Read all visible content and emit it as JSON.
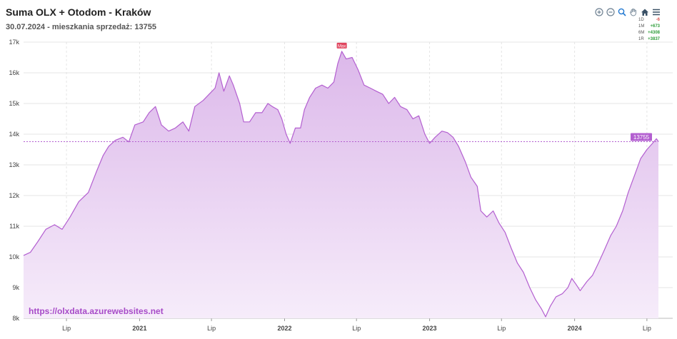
{
  "header": {
    "title": "Suma OLX + Otodom - Kraków",
    "subtitle": "30.07.2024 - mieszkania sprzedaż: 13755"
  },
  "toolbar": {
    "icons": [
      "zoom-in-icon",
      "zoom-out-icon",
      "magnify-icon",
      "pan-hand-icon",
      "home-icon",
      "menu-icon"
    ]
  },
  "changes": [
    {
      "label": "1D",
      "value": "-6",
      "trend": "neg"
    },
    {
      "label": "1M",
      "value": "+673",
      "trend": "pos"
    },
    {
      "label": "6M",
      "value": "+4308",
      "trend": "pos"
    },
    {
      "label": "1R",
      "value": "+3837",
      "trend": "pos"
    }
  ],
  "watermark": "https://olxdata.azurewebsites.net",
  "colors": {
    "line": "#b35fd0",
    "fill_top": "#dcb8ea",
    "fill_bottom": "#f6ecfa",
    "grid": "#e4e4e4",
    "annotation": "#b35fd0",
    "max_marker": "#e0455e"
  },
  "chart_data": {
    "type": "area",
    "title": "Suma OLX + Otodom - Kraków",
    "ylim": [
      8000,
      17000
    ],
    "yticks": [
      8000,
      9000,
      10000,
      11000,
      12000,
      13000,
      14000,
      15000,
      16000,
      17000
    ],
    "ytick_labels": [
      "8k",
      "9k",
      "10k",
      "11k",
      "12k",
      "13k",
      "14k",
      "15k",
      "16k",
      "17k"
    ],
    "xlim": [
      "2020-03-15",
      "2024-07-30"
    ],
    "xticks": [
      {
        "date": "2020-07-01",
        "label": "Lip",
        "bold": false
      },
      {
        "date": "2021-01-01",
        "label": "2021",
        "bold": true
      },
      {
        "date": "2021-07-01",
        "label": "Lip",
        "bold": false
      },
      {
        "date": "2022-01-01",
        "label": "2022",
        "bold": true
      },
      {
        "date": "2022-07-01",
        "label": "Lip",
        "bold": false
      },
      {
        "date": "2023-01-01",
        "label": "2023",
        "bold": true
      },
      {
        "date": "2023-07-01",
        "label": "Lip",
        "bold": false
      },
      {
        "date": "2024-01-01",
        "label": "2024",
        "bold": true
      },
      {
        "date": "2024-07-01",
        "label": "Lip",
        "bold": false
      }
    ],
    "points": [
      [
        "2020-03-15",
        10050
      ],
      [
        "2020-04-01",
        10150
      ],
      [
        "2020-04-20",
        10500
      ],
      [
        "2020-05-10",
        10900
      ],
      [
        "2020-06-01",
        11050
      ],
      [
        "2020-06-20",
        10900
      ],
      [
        "2020-07-10",
        11300
      ],
      [
        "2020-08-01",
        11800
      ],
      [
        "2020-08-25",
        12100
      ],
      [
        "2020-09-15",
        12800
      ],
      [
        "2020-10-01",
        13300
      ],
      [
        "2020-10-15",
        13600
      ],
      [
        "2020-11-01",
        13800
      ],
      [
        "2020-11-20",
        13900
      ],
      [
        "2020-12-05",
        13750
      ],
      [
        "2020-12-20",
        14300
      ],
      [
        "2021-01-10",
        14400
      ],
      [
        "2021-01-25",
        14700
      ],
      [
        "2021-02-10",
        14900
      ],
      [
        "2021-02-25",
        14300
      ],
      [
        "2021-03-15",
        14100
      ],
      [
        "2021-04-01",
        14200
      ],
      [
        "2021-04-20",
        14400
      ],
      [
        "2021-05-05",
        14100
      ],
      [
        "2021-05-20",
        14900
      ],
      [
        "2021-06-10",
        15100
      ],
      [
        "2021-06-25",
        15300
      ],
      [
        "2021-07-10",
        15500
      ],
      [
        "2021-07-20",
        16000
      ],
      [
        "2021-08-01",
        15400
      ],
      [
        "2021-08-15",
        15900
      ],
      [
        "2021-08-25",
        15600
      ],
      [
        "2021-09-10",
        15000
      ],
      [
        "2021-09-20",
        14400
      ],
      [
        "2021-10-05",
        14400
      ],
      [
        "2021-10-20",
        14700
      ],
      [
        "2021-11-05",
        14700
      ],
      [
        "2021-11-20",
        15000
      ],
      [
        "2021-12-01",
        14900
      ],
      [
        "2021-12-15",
        14800
      ],
      [
        "2021-12-25",
        14500
      ],
      [
        "2022-01-05",
        14000
      ],
      [
        "2022-01-15",
        13700
      ],
      [
        "2022-01-28",
        14200
      ],
      [
        "2022-02-10",
        14200
      ],
      [
        "2022-02-20",
        14800
      ],
      [
        "2022-03-05",
        15200
      ],
      [
        "2022-03-20",
        15500
      ],
      [
        "2022-04-05",
        15600
      ],
      [
        "2022-04-20",
        15500
      ],
      [
        "2022-05-05",
        15700
      ],
      [
        "2022-05-15",
        16300
      ],
      [
        "2022-05-25",
        16700
      ],
      [
        "2022-06-05",
        16450
      ],
      [
        "2022-06-20",
        16500
      ],
      [
        "2022-07-05",
        16100
      ],
      [
        "2022-07-20",
        15600
      ],
      [
        "2022-08-05",
        15500
      ],
      [
        "2022-08-20",
        15400
      ],
      [
        "2022-09-05",
        15300
      ],
      [
        "2022-09-20",
        15000
      ],
      [
        "2022-10-05",
        15200
      ],
      [
        "2022-10-20",
        14900
      ],
      [
        "2022-11-05",
        14800
      ],
      [
        "2022-11-20",
        14500
      ],
      [
        "2022-12-05",
        14600
      ],
      [
        "2022-12-20",
        14000
      ],
      [
        "2023-01-01",
        13700
      ],
      [
        "2023-01-15",
        13900
      ],
      [
        "2023-02-01",
        14100
      ],
      [
        "2023-02-15",
        14050
      ],
      [
        "2023-03-01",
        13900
      ],
      [
        "2023-03-15",
        13600
      ],
      [
        "2023-04-01",
        13100
      ],
      [
        "2023-04-15",
        12600
      ],
      [
        "2023-05-01",
        12300
      ],
      [
        "2023-05-10",
        11500
      ],
      [
        "2023-05-25",
        11300
      ],
      [
        "2023-06-10",
        11500
      ],
      [
        "2023-06-25",
        11100
      ],
      [
        "2023-07-10",
        10800
      ],
      [
        "2023-07-25",
        10300
      ],
      [
        "2023-08-10",
        9800
      ],
      [
        "2023-08-25",
        9500
      ],
      [
        "2023-09-10",
        9000
      ],
      [
        "2023-09-25",
        8600
      ],
      [
        "2023-10-10",
        8300
      ],
      [
        "2023-10-20",
        8050
      ],
      [
        "2023-11-01",
        8400
      ],
      [
        "2023-11-15",
        8700
      ],
      [
        "2023-12-01",
        8800
      ],
      [
        "2023-12-15",
        9000
      ],
      [
        "2023-12-25",
        9300
      ],
      [
        "2024-01-05",
        9100
      ],
      [
        "2024-01-15",
        8900
      ],
      [
        "2024-02-01",
        9200
      ],
      [
        "2024-02-15",
        9400
      ],
      [
        "2024-03-01",
        9800
      ],
      [
        "2024-03-15",
        10200
      ],
      [
        "2024-04-01",
        10700
      ],
      [
        "2024-04-15",
        11000
      ],
      [
        "2024-05-01",
        11500
      ],
      [
        "2024-05-15",
        12100
      ],
      [
        "2024-06-01",
        12700
      ],
      [
        "2024-06-15",
        13200
      ],
      [
        "2024-07-01",
        13500
      ],
      [
        "2024-07-15",
        13700
      ],
      [
        "2024-07-25",
        13850
      ],
      [
        "2024-07-30",
        13755
      ]
    ],
    "annotations": {
      "max_label": "Max",
      "max_point": [
        "2022-05-25",
        16700
      ],
      "last_value_label": "13755",
      "last_value": 13755
    },
    "grid": true
  }
}
